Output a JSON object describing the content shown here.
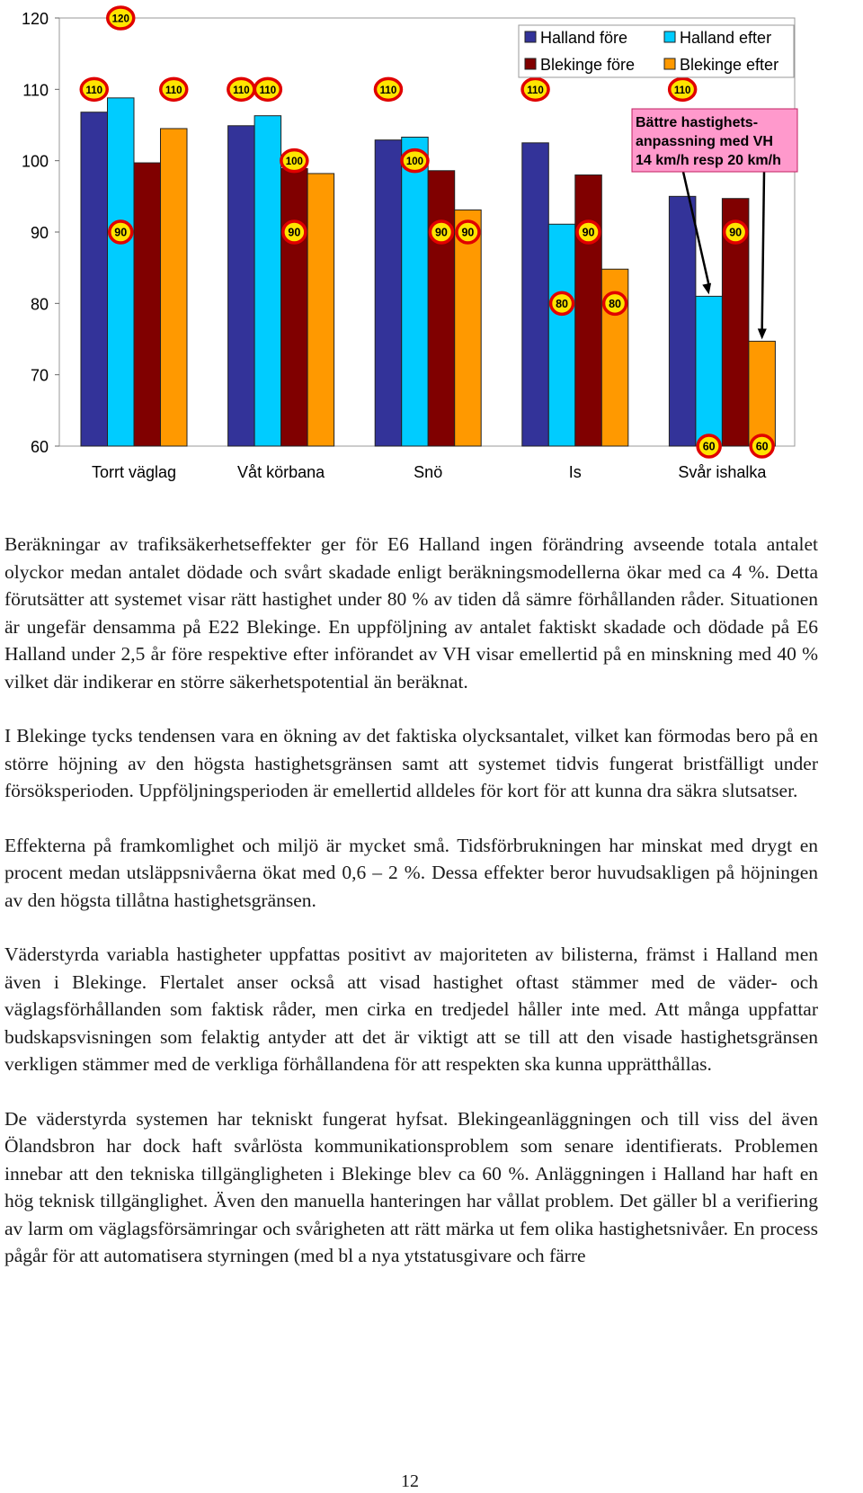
{
  "chart_data": {
    "type": "bar",
    "categories": [
      "Torrt väglag",
      "Våt körbana",
      "Snö",
      "Is",
      "Svår ishalka"
    ],
    "ylim": [
      60,
      120
    ],
    "yticks": [
      60,
      70,
      80,
      90,
      100,
      110,
      120
    ],
    "grid": false,
    "legend_position": "top-right",
    "series": [
      {
        "name": "Halland före",
        "color": "#333399",
        "values": [
          106.8,
          104.9,
          102.9,
          102.5,
          95.0
        ]
      },
      {
        "name": "Halland efter",
        "color": "#00ccff",
        "values": [
          108.8,
          106.3,
          103.3,
          91.1,
          81.0
        ]
      },
      {
        "name": "Blekinge före",
        "color": "#800000",
        "values": [
          99.7,
          98.9,
          98.6,
          98.0,
          94.7
        ]
      },
      {
        "name": "Blekinge efter",
        "color": "#ff9900",
        "values": [
          104.5,
          98.2,
          93.1,
          84.8,
          74.7
        ]
      }
    ],
    "annotation": {
      "lines": [
        "Bättre hastighets-",
        "anpassning med VH",
        "14 km/h resp 20 km/h"
      ],
      "fill": "#ff99cc"
    },
    "speed_signs": [
      {
        "category": 0,
        "series": 0,
        "value": 110,
        "label": "110"
      },
      {
        "category": 0,
        "series": 1,
        "value": 120,
        "label": "120"
      },
      {
        "category": 0,
        "series": 1,
        "value": 90,
        "label": "90"
      },
      {
        "category": 0,
        "series": 3,
        "value": 110,
        "label": "110"
      },
      {
        "category": 1,
        "series": 0,
        "value": 110,
        "label": "110"
      },
      {
        "category": 1,
        "series": 1,
        "value": 110,
        "label": "110"
      },
      {
        "category": 1,
        "series": 2,
        "value": 100,
        "label": "100"
      },
      {
        "category": 1,
        "series": 2,
        "value": 90,
        "label": "90"
      },
      {
        "category": 2,
        "series": 0,
        "value": 110,
        "label": "110"
      },
      {
        "category": 2,
        "series": 1,
        "value": 100,
        "label": "100"
      },
      {
        "category": 2,
        "series": 2,
        "value": 90,
        "label": "90"
      },
      {
        "category": 2,
        "series": 3,
        "value": 90,
        "label": "90"
      },
      {
        "category": 3,
        "series": 0,
        "value": 110,
        "label": "110"
      },
      {
        "category": 3,
        "series": 1,
        "value": 80,
        "label": "80"
      },
      {
        "category": 3,
        "series": 2,
        "value": 90,
        "label": "90"
      },
      {
        "category": 3,
        "series": 3,
        "value": 80,
        "label": "80"
      },
      {
        "category": 4,
        "series": 0,
        "value": 110,
        "label": "110"
      },
      {
        "category": 4,
        "series": 1,
        "value": 60,
        "label": "60"
      },
      {
        "category": 4,
        "series": 2,
        "value": 90,
        "label": "90"
      },
      {
        "category": 4,
        "series": 3,
        "value": 60,
        "label": "60"
      }
    ]
  },
  "text": {
    "p1": "Beräkningar av trafiksäkerhetseffekter ger för E6 Halland ingen förändring avseende totala antalet olyckor medan antalet dödade och svårt skadade enligt beräkningsmo­dellerna ökar med ca 4 %. Detta förutsätter att systemet visar rätt hastighet under 80 % av tiden då sämre förhållanden råder. Situationen är ungefär densamma på E22 Blekinge. En uppföljning av antalet faktiskt skadade och dödade på E6 Halland under 2,5 år före respektive efter införandet av VH visar emellertid på en minskning med 40 % vilket där indikerar en större säkerhetspotential än beräknat.",
    "p2": "I Blekinge tycks tendensen vara en ökning av det faktiska olycksantalet, vilket kan förmodas bero på en större höjning av den högsta hastighetsgränsen samt att systemet tidvis fungerat bristfälligt under försöksperioden. Uppföljningsperioden är emellertid alldeles för kort för att kunna dra säkra slutsatser.",
    "p3": "Effekterna på framkomlighet och miljö är mycket små. Tidsförbrukningen har mins­kat med drygt en procent medan utsläppsnivåerna ökat med 0,6 – 2 %. Dessa effekter beror huvudsakligen på höjningen av den högsta tillåtna hastighetsgränsen.",
    "p4": "Väderstyrda variabla hastigheter uppfattas positivt av majoriteten av bilisterna, främst i Halland men även i Blekinge. Flertalet anser också att visad hastighet oftast stämmer med de väder- och väglagsförhållanden som faktisk råder, men cirka en tredjedel hål­ler inte med. Att många uppfattar budskapsvisningen som felaktig antyder att det är viktigt att se till att den visade hastighetsgränsen verkligen stämmer med de verkliga förhållandena för att respekten ska kunna upprätthållas.",
    "p5": "De väderstyrda systemen har tekniskt fungerat hyfsat. Blekingeanläggningen och till viss del även Ölandsbron har dock haft svårlösta kommunikationsproblem som senare identifierats. Problemen innebar att den tekniska tillgängligheten i Blekinge blev ca 60 %. Anläggningen i Halland har haft en hög teknisk tillgänglighet. Även den manuella hanteringen har vållat problem. Det gäller bl a verifiering av larm om väg­lagsförsämringar och svårigheten att rätt märka ut fem olika hastighetsnivåer. En process pågår för att automatisera styrningen (med bl a nya ytstatusgivare och färre"
  },
  "page_number": "12"
}
